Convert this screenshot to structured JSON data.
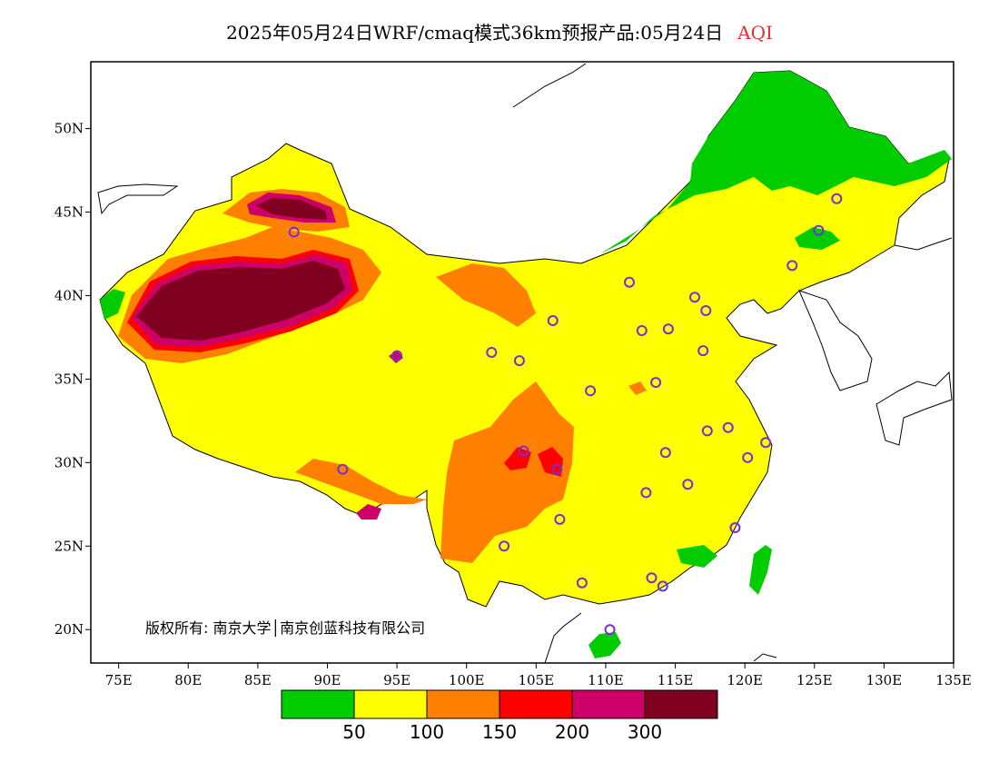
{
  "title": {
    "main": "2025年05月24日WRF/cmaq模式36km预报产品:05月24日",
    "variable": "AQI"
  },
  "axes": {
    "lat_labels": [
      "50N",
      "45N",
      "40N",
      "35N",
      "30N",
      "25N",
      "20N"
    ],
    "lon_labels": [
      "75E",
      "80E",
      "85E",
      "90E",
      "95E",
      "100E",
      "105E",
      "110E",
      "115E",
      "120E",
      "125E",
      "130E",
      "135E"
    ],
    "lon_range": [
      73,
      135
    ],
    "lat_range": [
      18,
      54
    ]
  },
  "copyright": "版权所有: 南京大学│南京创蓝科技有限公司",
  "legend": {
    "colors": [
      "#00cc00",
      "#ffff00",
      "#ff8000",
      "#ff0000",
      "#cc0066",
      "#800020"
    ],
    "labels": [
      "50",
      "100",
      "150",
      "200",
      "300"
    ]
  },
  "stations": [
    [
      87.6,
      43.8
    ],
    [
      91.1,
      29.6
    ],
    [
      95.0,
      36.4
    ],
    [
      101.8,
      36.6
    ],
    [
      103.8,
      36.1
    ],
    [
      106.2,
      38.5
    ],
    [
      104.1,
      30.7
    ],
    [
      106.5,
      29.6
    ],
    [
      106.7,
      26.6
    ],
    [
      102.7,
      25.0
    ],
    [
      108.3,
      22.8
    ],
    [
      110.3,
      20.0
    ],
    [
      113.3,
      23.1
    ],
    [
      114.1,
      22.6
    ],
    [
      119.3,
      26.1
    ],
    [
      112.9,
      28.2
    ],
    [
      115.9,
      28.7
    ],
    [
      114.3,
      30.6
    ],
    [
      117.3,
      31.9
    ],
    [
      118.8,
      32.1
    ],
    [
      120.2,
      30.3
    ],
    [
      121.5,
      31.2
    ],
    [
      113.6,
      34.8
    ],
    [
      108.9,
      34.3
    ],
    [
      111.7,
      40.8
    ],
    [
      112.6,
      37.9
    ],
    [
      114.5,
      38.0
    ],
    [
      116.4,
      39.9
    ],
    [
      117.2,
      39.1
    ],
    [
      117.0,
      36.7
    ],
    [
      123.4,
      41.8
    ],
    [
      125.3,
      43.9
    ],
    [
      126.6,
      45.8
    ]
  ]
}
